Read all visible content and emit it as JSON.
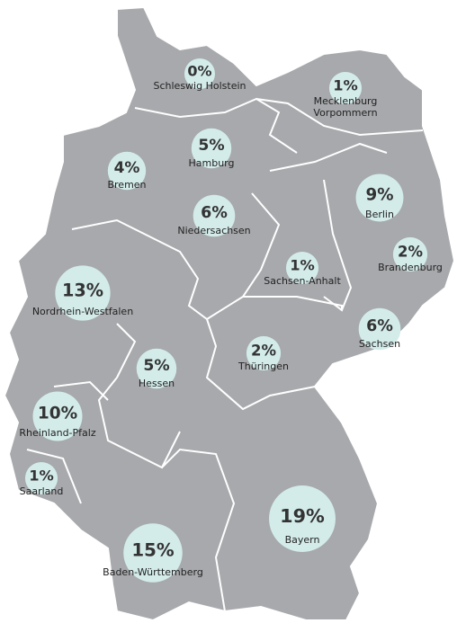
{
  "regions": {
    "names": [
      "Schleswig Holstein",
      "Mecklenburg Vorpommern",
      "Hamburg",
      "Bremen",
      "Niedersachsen",
      "Berlin",
      "Brandenburg",
      "Sachsen-Anhalt",
      "Nordrhein-Westfalen",
      "Sachsen",
      "Thüringen",
      "Hessen",
      "Rheinland-Pfalz",
      "Saarland",
      "Bayern",
      "Baden-Württemberg"
    ],
    "values": [
      0,
      1,
      5,
      4,
      6,
      9,
      2,
      1,
      13,
      6,
      2,
      5,
      10,
      1,
      19,
      15
    ],
    "value_labels": [
      "0%",
      "1%",
      "5%",
      "4%",
      "6%",
      "9%",
      "2%",
      "1%",
      "13%",
      "6%",
      "2%",
      "5%",
      "10%",
      "1%",
      "19%",
      "15%"
    ]
  }
}
